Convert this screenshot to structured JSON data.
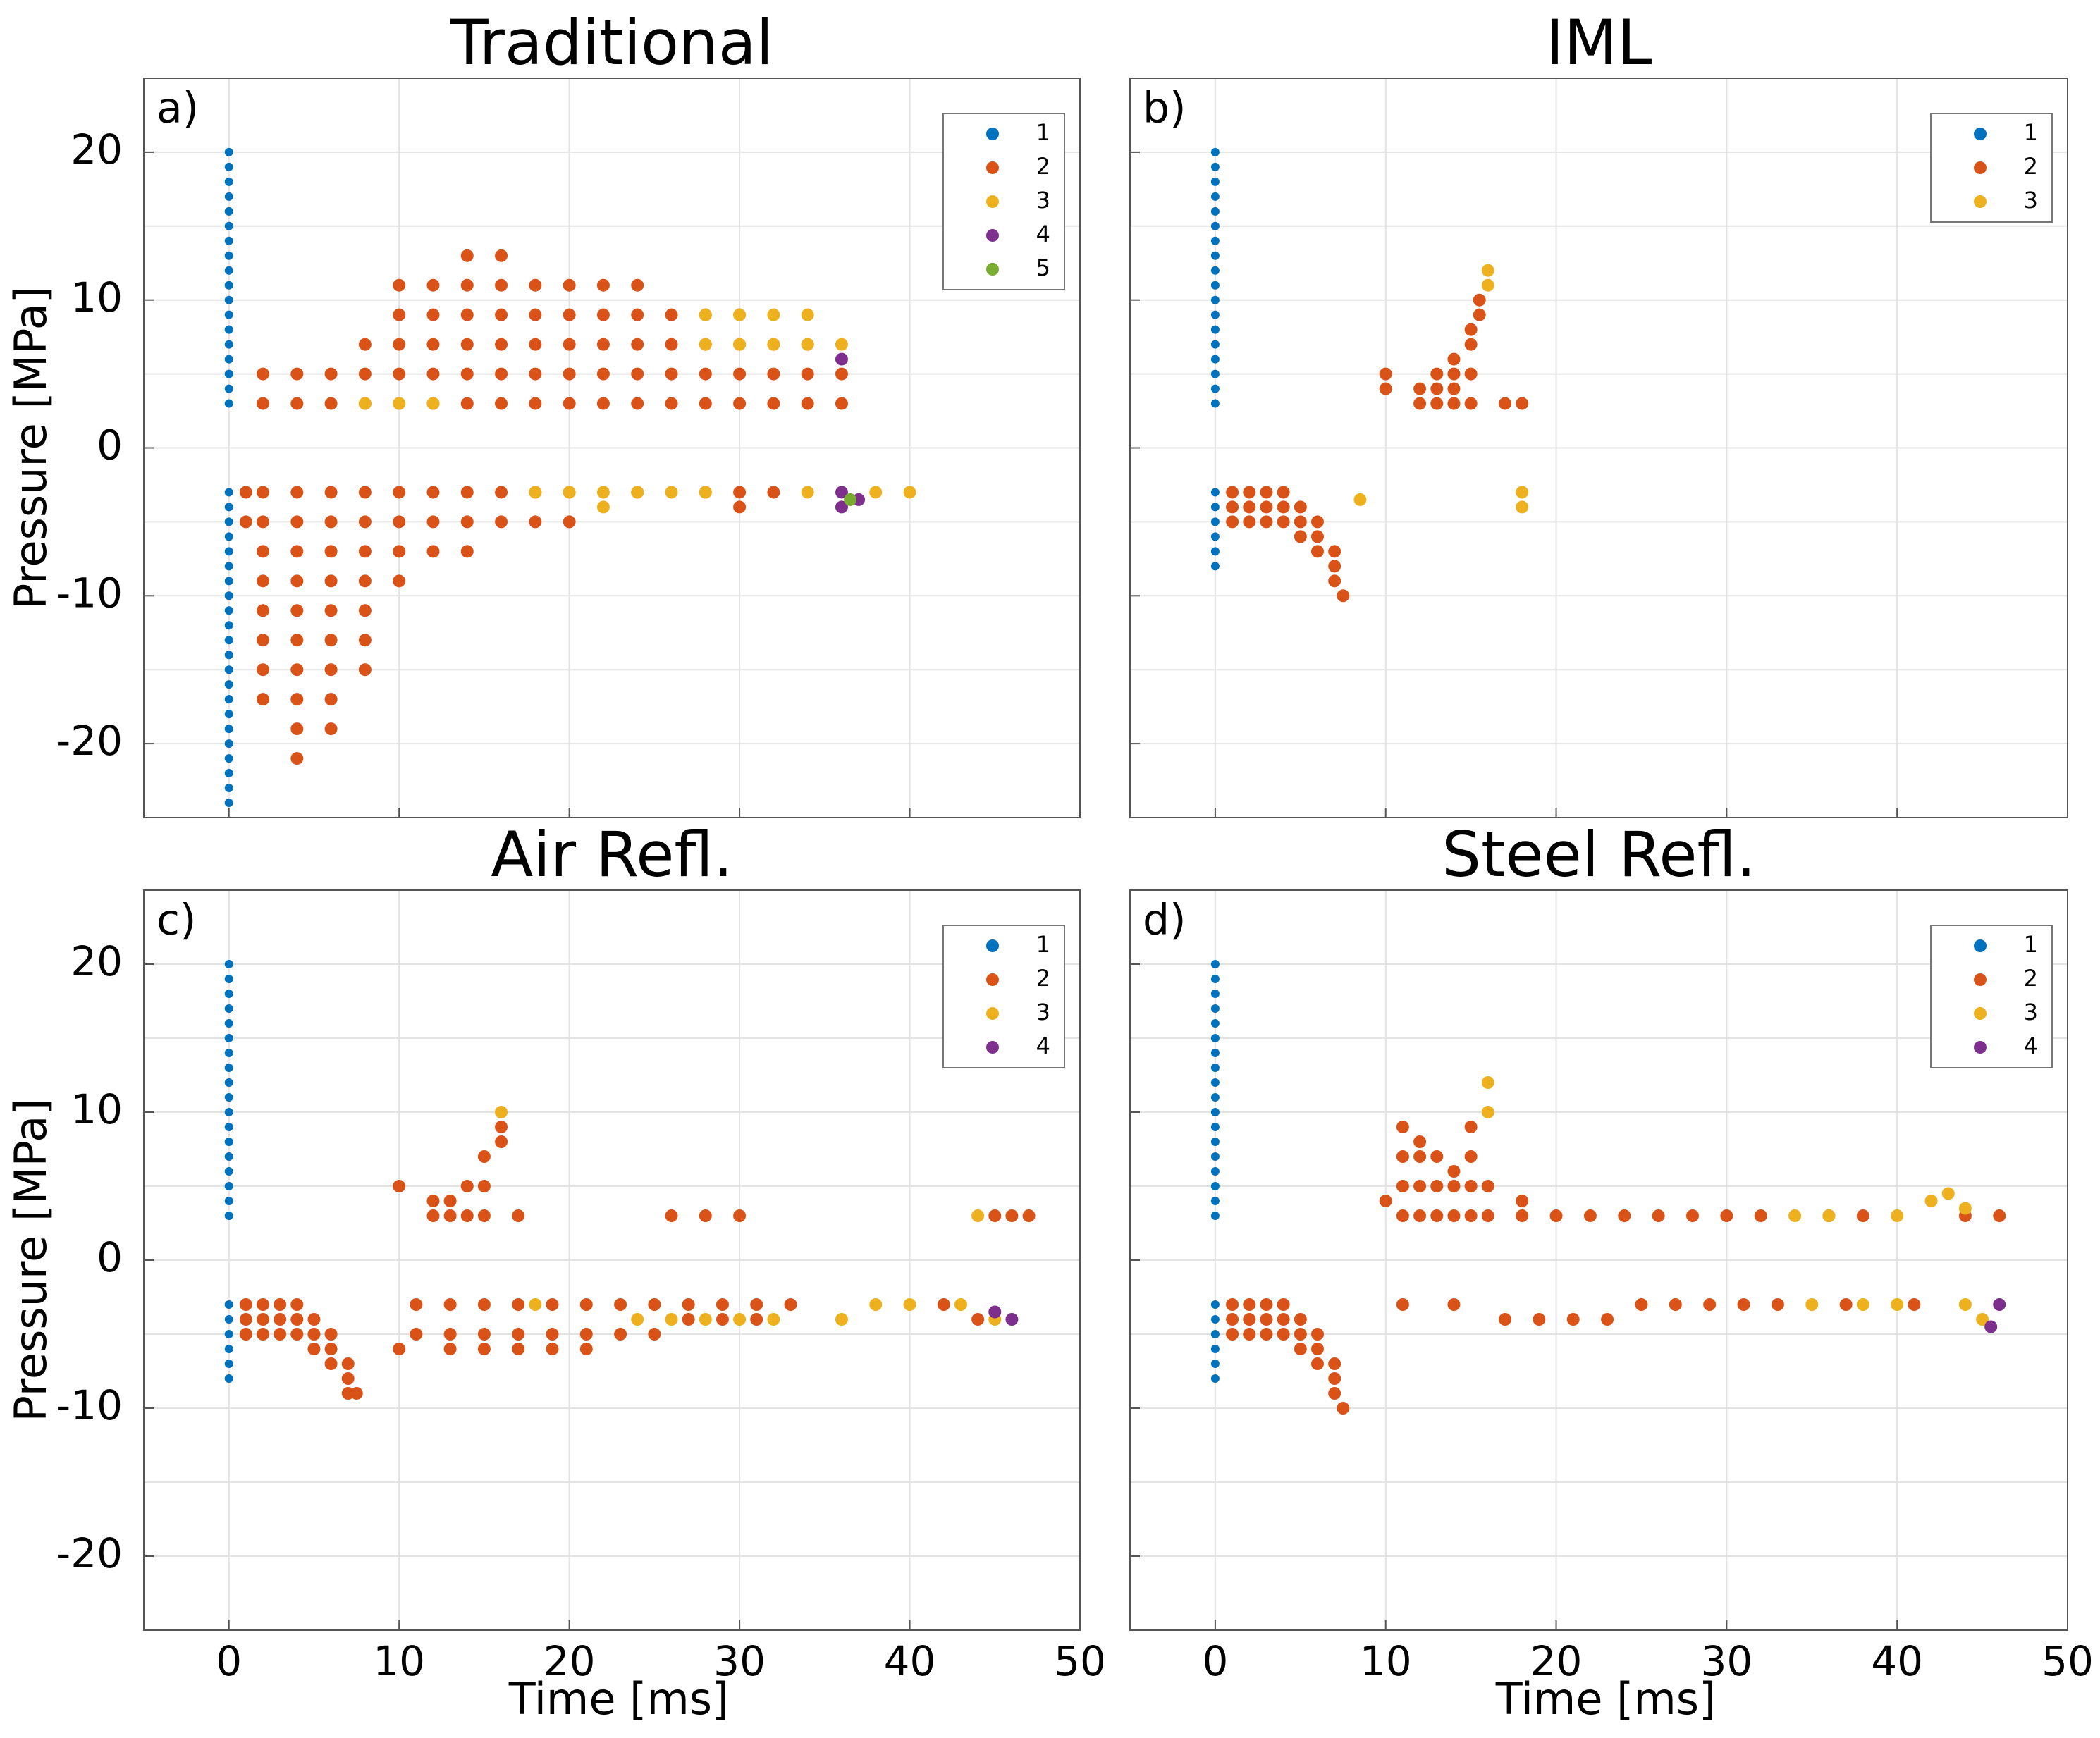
{
  "chart_data": [
    {
      "type": "scatter",
      "title": "Traditional",
      "panel_label": "a)",
      "ylabel": "Pressure [MPa]",
      "xlim": [
        -5,
        50
      ],
      "ylim": [
        -25,
        25
      ],
      "xticks": [
        0,
        10,
        20,
        30,
        40,
        50
      ],
      "yticks": [
        -20,
        -10,
        0,
        10,
        20
      ],
      "minor_yticks": [
        -15,
        -5,
        5,
        15
      ],
      "xtick_labels": false,
      "ytick_labels": true,
      "grid": true,
      "legend": "northeast",
      "series": [
        {
          "name": "1",
          "color": "#0072BD",
          "x": [
            0,
            0,
            0,
            0,
            0,
            0,
            0,
            0,
            0,
            0,
            0,
            0,
            0,
            0,
            0,
            0,
            0,
            0,
            0,
            0,
            0,
            0,
            0,
            0,
            0,
            0,
            0,
            0,
            0,
            0,
            0,
            0,
            0,
            0,
            0,
            0,
            0,
            0,
            0,
            0
          ],
          "y": [
            3,
            4,
            5,
            6,
            7,
            8,
            9,
            10,
            11,
            12,
            13,
            14,
            15,
            16,
            17,
            18,
            19,
            20,
            -3,
            -4,
            -5,
            -6,
            -7,
            -8,
            -9,
            -10,
            -11,
            -12,
            -13,
            -14,
            -15,
            -16,
            -17,
            -18,
            -19,
            -20,
            -21,
            -22,
            -23,
            -24
          ]
        },
        {
          "name": "2",
          "color": "#D95319",
          "x": [
            2,
            2,
            4,
            4,
            6,
            6,
            8,
            8,
            8,
            10,
            10,
            10,
            10,
            10,
            12,
            12,
            12,
            12,
            12,
            14,
            14,
            14,
            14,
            14,
            14,
            16,
            16,
            16,
            16,
            16,
            16,
            18,
            18,
            18,
            18,
            18,
            20,
            20,
            20,
            20,
            20,
            22,
            22,
            22,
            22,
            22,
            24,
            24,
            24,
            24,
            24,
            26,
            26,
            26,
            26,
            28,
            28,
            28,
            28,
            30,
            30,
            30,
            30,
            32,
            32,
            32,
            34,
            34,
            34,
            36,
            36,
            1,
            1,
            2,
            2,
            2,
            2,
            2,
            2,
            2,
            2,
            4,
            4,
            4,
            4,
            4,
            4,
            4,
            4,
            4,
            4,
            6,
            6,
            6,
            6,
            6,
            6,
            6,
            6,
            6,
            8,
            8,
            8,
            8,
            8,
            8,
            8,
            10,
            10,
            10,
            10,
            12,
            12,
            12,
            14,
            14,
            14,
            16,
            16,
            18,
            18,
            20,
            20,
            24,
            28,
            30,
            30,
            32
          ],
          "y": [
            3,
            5,
            3,
            5,
            3,
            5,
            3,
            5,
            7,
            3,
            5,
            7,
            9,
            11,
            3,
            5,
            7,
            9,
            11,
            3,
            5,
            7,
            9,
            11,
            13,
            3,
            5,
            7,
            9,
            11,
            13,
            3,
            5,
            7,
            9,
            11,
            3,
            5,
            7,
            9,
            11,
            3,
            5,
            7,
            9,
            11,
            3,
            5,
            7,
            9,
            11,
            3,
            5,
            7,
            9,
            3,
            5,
            7,
            9,
            3,
            5,
            7,
            9,
            3,
            5,
            7,
            3,
            5,
            7,
            3,
            5,
            -3,
            -5,
            -3,
            -5,
            -7,
            -9,
            -11,
            -13,
            -15,
            -17,
            -3,
            -5,
            -7,
            -9,
            -11,
            -13,
            -15,
            -17,
            -19,
            -21,
            -3,
            -5,
            -7,
            -9,
            -11,
            -13,
            -15,
            -17,
            -19,
            -3,
            -5,
            -7,
            -9,
            -11,
            -13,
            -15,
            -3,
            -5,
            -7,
            -9,
            -3,
            -5,
            -7,
            -3,
            -5,
            -7,
            -3,
            -5,
            -3,
            -5,
            -3,
            -5,
            -3,
            -3,
            -3,
            -4,
            -3
          ]
        },
        {
          "name": "3",
          "color": "#EDB120",
          "x": [
            8,
            10,
            12,
            28,
            28,
            30,
            30,
            32,
            32,
            34,
            34,
            36,
            18,
            20,
            22,
            22,
            24,
            26,
            28,
            34,
            38,
            40
          ],
          "y": [
            3,
            3,
            3,
            7,
            9,
            7,
            9,
            7,
            9,
            7,
            9,
            7,
            -3,
            -3,
            -3,
            -4,
            -3,
            -3,
            -3,
            -3,
            -3,
            -3
          ]
        },
        {
          "name": "4",
          "color": "#7E2F8E",
          "x": [
            36,
            36,
            36,
            37
          ],
          "y": [
            6,
            -3,
            -4,
            -3.5
          ]
        },
        {
          "name": "5",
          "color": "#77AC30",
          "x": [
            36.5
          ],
          "y": [
            -3.5
          ]
        }
      ]
    },
    {
      "type": "scatter",
      "title": "IML",
      "panel_label": "b)",
      "xlim": [
        -5,
        50
      ],
      "ylim": [
        -25,
        25
      ],
      "xticks": [
        0,
        10,
        20,
        30,
        40,
        50
      ],
      "yticks": [
        -20,
        -10,
        0,
        10,
        20
      ],
      "minor_yticks": [
        -15,
        -5,
        5,
        15
      ],
      "xtick_labels": false,
      "ytick_labels": false,
      "grid": true,
      "legend": "northeast",
      "series": [
        {
          "name": "1",
          "color": "#0072BD",
          "x": [
            0,
            0,
            0,
            0,
            0,
            0,
            0,
            0,
            0,
            0,
            0,
            0,
            0,
            0,
            0,
            0,
            0,
            0,
            0,
            0,
            0,
            0,
            0,
            0
          ],
          "y": [
            3,
            4,
            5,
            6,
            7,
            8,
            9,
            10,
            11,
            12,
            13,
            14,
            15,
            16,
            17,
            18,
            19,
            20,
            -3,
            -4,
            -5,
            -6,
            -7,
            -8
          ]
        },
        {
          "name": "2",
          "color": "#D95319",
          "x": [
            1,
            1,
            1,
            2,
            2,
            2,
            3,
            3,
            3,
            4,
            4,
            4,
            5,
            5,
            5,
            6,
            6,
            6,
            7,
            7,
            7,
            7.5,
            10,
            10,
            12,
            12,
            13,
            13,
            13,
            14,
            14,
            14,
            14,
            15,
            15,
            15,
            15,
            15.5,
            15.5,
            17,
            18
          ],
          "y": [
            -3,
            -4,
            -5,
            -3,
            -4,
            -5,
            -3,
            -4,
            -5,
            -3,
            -4,
            -5,
            -4,
            -5,
            -6,
            -5,
            -6,
            -7,
            -7,
            -8,
            -9,
            -10,
            4,
            5,
            3,
            4,
            3,
            4,
            5,
            3,
            4,
            5,
            6,
            3,
            5,
            7,
            8,
            9,
            10,
            3,
            3
          ]
        },
        {
          "name": "3",
          "color": "#EDB120",
          "x": [
            16,
            16,
            18,
            18,
            8.5
          ],
          "y": [
            11,
            12,
            -3,
            -4,
            -3.5
          ]
        }
      ]
    },
    {
      "type": "scatter",
      "title": "Air Refl.",
      "panel_label": "c)",
      "ylabel": "Pressure [MPa]",
      "xlabel": "Time [ms]",
      "xlim": [
        -5,
        50
      ],
      "ylim": [
        -25,
        25
      ],
      "xticks": [
        0,
        10,
        20,
        30,
        40,
        50
      ],
      "yticks": [
        -20,
        -10,
        0,
        10,
        20
      ],
      "minor_yticks": [
        -15,
        -5,
        5,
        15
      ],
      "xtick_labels": true,
      "ytick_labels": true,
      "grid": true,
      "legend": "northeast",
      "series": [
        {
          "name": "1",
          "color": "#0072BD",
          "x": [
            0,
            0,
            0,
            0,
            0,
            0,
            0,
            0,
            0,
            0,
            0,
            0,
            0,
            0,
            0,
            0,
            0,
            0,
            0,
            0,
            0,
            0,
            0,
            0
          ],
          "y": [
            3,
            4,
            5,
            6,
            7,
            8,
            9,
            10,
            11,
            12,
            13,
            14,
            15,
            16,
            17,
            18,
            19,
            20,
            -3,
            -4,
            -5,
            -6,
            -7,
            -8
          ]
        },
        {
          "name": "2",
          "color": "#D95319",
          "x": [
            1,
            1,
            1,
            2,
            2,
            2,
            3,
            3,
            3,
            4,
            4,
            4,
            5,
            5,
            5,
            6,
            6,
            6,
            7,
            7,
            7,
            7.5,
            10,
            10,
            11,
            11,
            13,
            13,
            13,
            15,
            15,
            15,
            17,
            17,
            17,
            19,
            19,
            19,
            21,
            21,
            21,
            23,
            23,
            25,
            25,
            27,
            27,
            29,
            29,
            31,
            31,
            33,
            12,
            12,
            13,
            13,
            14,
            14,
            15,
            15,
            15,
            16,
            16,
            17,
            26,
            28,
            30,
            45,
            46,
            47,
            42,
            44
          ],
          "y": [
            -3,
            -4,
            -5,
            -3,
            -4,
            -5,
            -3,
            -4,
            -5,
            -3,
            -4,
            -5,
            -4,
            -5,
            -6,
            -5,
            -6,
            -7,
            -7,
            -8,
            -9,
            -9,
            5,
            -6,
            -3,
            -5,
            -3,
            -5,
            -6,
            -3,
            -5,
            -6,
            -3,
            -5,
            -6,
            -3,
            -5,
            -6,
            -3,
            -5,
            -6,
            -3,
            -5,
            -3,
            -5,
            -3,
            -4,
            -3,
            -4,
            -3,
            -4,
            -3,
            3,
            4,
            3,
            4,
            3,
            5,
            3,
            5,
            7,
            8,
            9,
            3,
            3,
            3,
            3,
            3,
            3,
            3,
            -3,
            -4
          ]
        },
        {
          "name": "3",
          "color": "#EDB120",
          "x": [
            16,
            18,
            24,
            26,
            28,
            30,
            32,
            36,
            38,
            40,
            43,
            45,
            44
          ],
          "y": [
            10,
            -3,
            -4,
            -4,
            -4,
            -4,
            -4,
            -4,
            -3,
            -3,
            -3,
            -4,
            3
          ]
        },
        {
          "name": "4",
          "color": "#7E2F8E",
          "x": [
            45,
            46
          ],
          "y": [
            -3.5,
            -4
          ]
        }
      ]
    },
    {
      "type": "scatter",
      "title": "Steel Refl.",
      "panel_label": "d)",
      "xlabel": "Time [ms]",
      "xlim": [
        -5,
        50
      ],
      "ylim": [
        -25,
        25
      ],
      "xticks": [
        0,
        10,
        20,
        30,
        40,
        50
      ],
      "yticks": [
        -20,
        -10,
        0,
        10,
        20
      ],
      "minor_yticks": [
        -15,
        -5,
        5,
        15
      ],
      "xtick_labels": true,
      "ytick_labels": false,
      "grid": true,
      "legend": "northeast",
      "series": [
        {
          "name": "1",
          "color": "#0072BD",
          "x": [
            0,
            0,
            0,
            0,
            0,
            0,
            0,
            0,
            0,
            0,
            0,
            0,
            0,
            0,
            0,
            0,
            0,
            0,
            0,
            0,
            0,
            0,
            0,
            0
          ],
          "y": [
            3,
            4,
            5,
            6,
            7,
            8,
            9,
            10,
            11,
            12,
            13,
            14,
            15,
            16,
            17,
            18,
            19,
            20,
            -3,
            -4,
            -5,
            -6,
            -7,
            -8
          ]
        },
        {
          "name": "2",
          "color": "#D95319",
          "x": [
            1,
            1,
            1,
            2,
            2,
            2,
            3,
            3,
            3,
            4,
            4,
            4,
            5,
            5,
            5,
            6,
            6,
            6,
            7,
            7,
            7,
            7.5,
            11,
            11,
            11,
            11,
            12,
            12,
            12,
            12,
            13,
            13,
            13,
            14,
            14,
            14,
            15,
            15,
            15,
            15,
            16,
            16,
            18,
            18,
            20,
            22,
            24,
            26,
            28,
            30,
            32,
            36,
            38,
            44,
            46,
            10,
            11,
            14,
            17,
            19,
            21,
            23,
            25,
            27,
            29,
            31,
            33,
            37,
            41
          ],
          "y": [
            -3,
            -4,
            -5,
            -3,
            -4,
            -5,
            -3,
            -4,
            -5,
            -3,
            -4,
            -5,
            -4,
            -5,
            -6,
            -5,
            -6,
            -7,
            -7,
            -8,
            -9,
            -10,
            3,
            5,
            7,
            9,
            3,
            5,
            7,
            8,
            3,
            5,
            7,
            3,
            5,
            6,
            3,
            5,
            7,
            9,
            3,
            5,
            3,
            4,
            3,
            3,
            3,
            3,
            3,
            3,
            3,
            3,
            3,
            3,
            3,
            4,
            -3,
            -3,
            -4,
            -4,
            -4,
            -4,
            -3,
            -3,
            -3,
            -3,
            -3,
            -3,
            -3
          ]
        },
        {
          "name": "3",
          "color": "#EDB120",
          "x": [
            16,
            16,
            34,
            36,
            40,
            42,
            43,
            44,
            35,
            38,
            40,
            44,
            45
          ],
          "y": [
            10,
            12,
            3,
            3,
            3,
            4,
            4.5,
            3.5,
            -3,
            -3,
            -3,
            -3,
            -4
          ]
        },
        {
          "name": "4",
          "color": "#7E2F8E",
          "x": [
            46,
            45.5
          ],
          "y": [
            -3,
            -4.5
          ]
        }
      ]
    }
  ]
}
